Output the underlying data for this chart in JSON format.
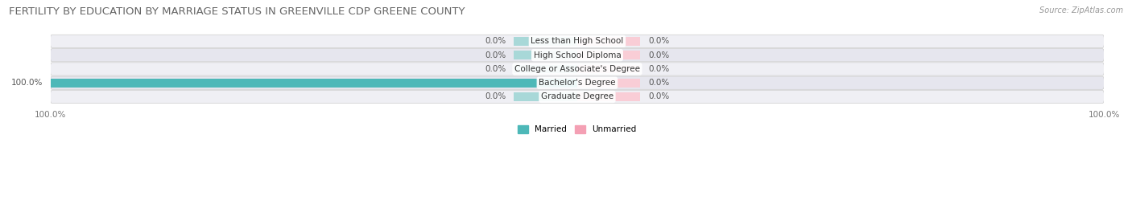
{
  "title": "FERTILITY BY EDUCATION BY MARRIAGE STATUS IN GREENVILLE CDP GREENE COUNTY",
  "source": "Source: ZipAtlas.com",
  "categories": [
    "Less than High School",
    "High School Diploma",
    "College or Associate's Degree",
    "Bachelor's Degree",
    "Graduate Degree"
  ],
  "married_values": [
    0.0,
    0.0,
    0.0,
    100.0,
    0.0
  ],
  "unmarried_values": [
    0.0,
    0.0,
    0.0,
    0.0,
    0.0
  ],
  "married_color": "#4db8b8",
  "unmarried_color": "#f4a0b4",
  "married_bg_color": "#a8d8d8",
  "unmarried_bg_color": "#f9cdd6",
  "row_bg_light": "#efeff4",
  "row_bg_dark": "#e6e6ee",
  "bar_height": 0.62,
  "bg_bar_width": 12,
  "title_fontsize": 9.5,
  "label_fontsize": 7.5,
  "cat_fontsize": 7.5,
  "tick_fontsize": 7.5,
  "source_fontsize": 7,
  "figsize": [
    14.06,
    2.69
  ],
  "dpi": 100
}
